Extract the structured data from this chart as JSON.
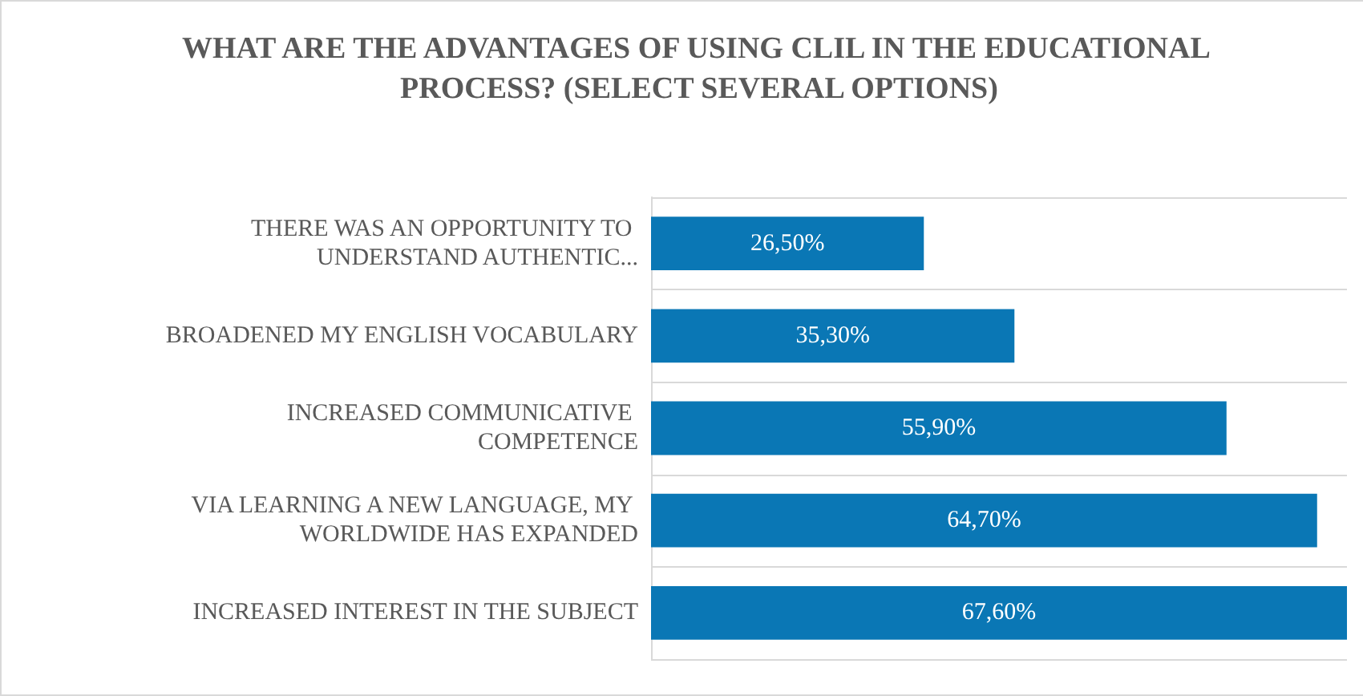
{
  "chart_data": {
    "type": "bar",
    "orientation": "horizontal",
    "title": "WHAT ARE THE ADVANTAGES OF USING CLIL IN THE EDUCATIONAL PROCESS? (SELECT SEVERAL OPTIONS)",
    "categories": [
      "THERE WAS AN OPPORTUNITY TO UNDERSTAND AUTHENTIC...",
      "BROADENED MY ENGLISH VOCABULARY",
      "INCREASED COMMUNICATIVE COMPETENCE",
      "VIA LEARNING A NEW LANGUAGE, MY WORLDWIDE HAS EXPANDED",
      "INCREASED INTEREST IN THE SUBJECT"
    ],
    "values": [
      26.5,
      35.3,
      55.9,
      64.7,
      67.6
    ],
    "value_labels": [
      "26,50%",
      "35,30%",
      "55,90%",
      "64,70%",
      "67,60%"
    ],
    "color": "#0a77b5",
    "grid": "y"
  }
}
